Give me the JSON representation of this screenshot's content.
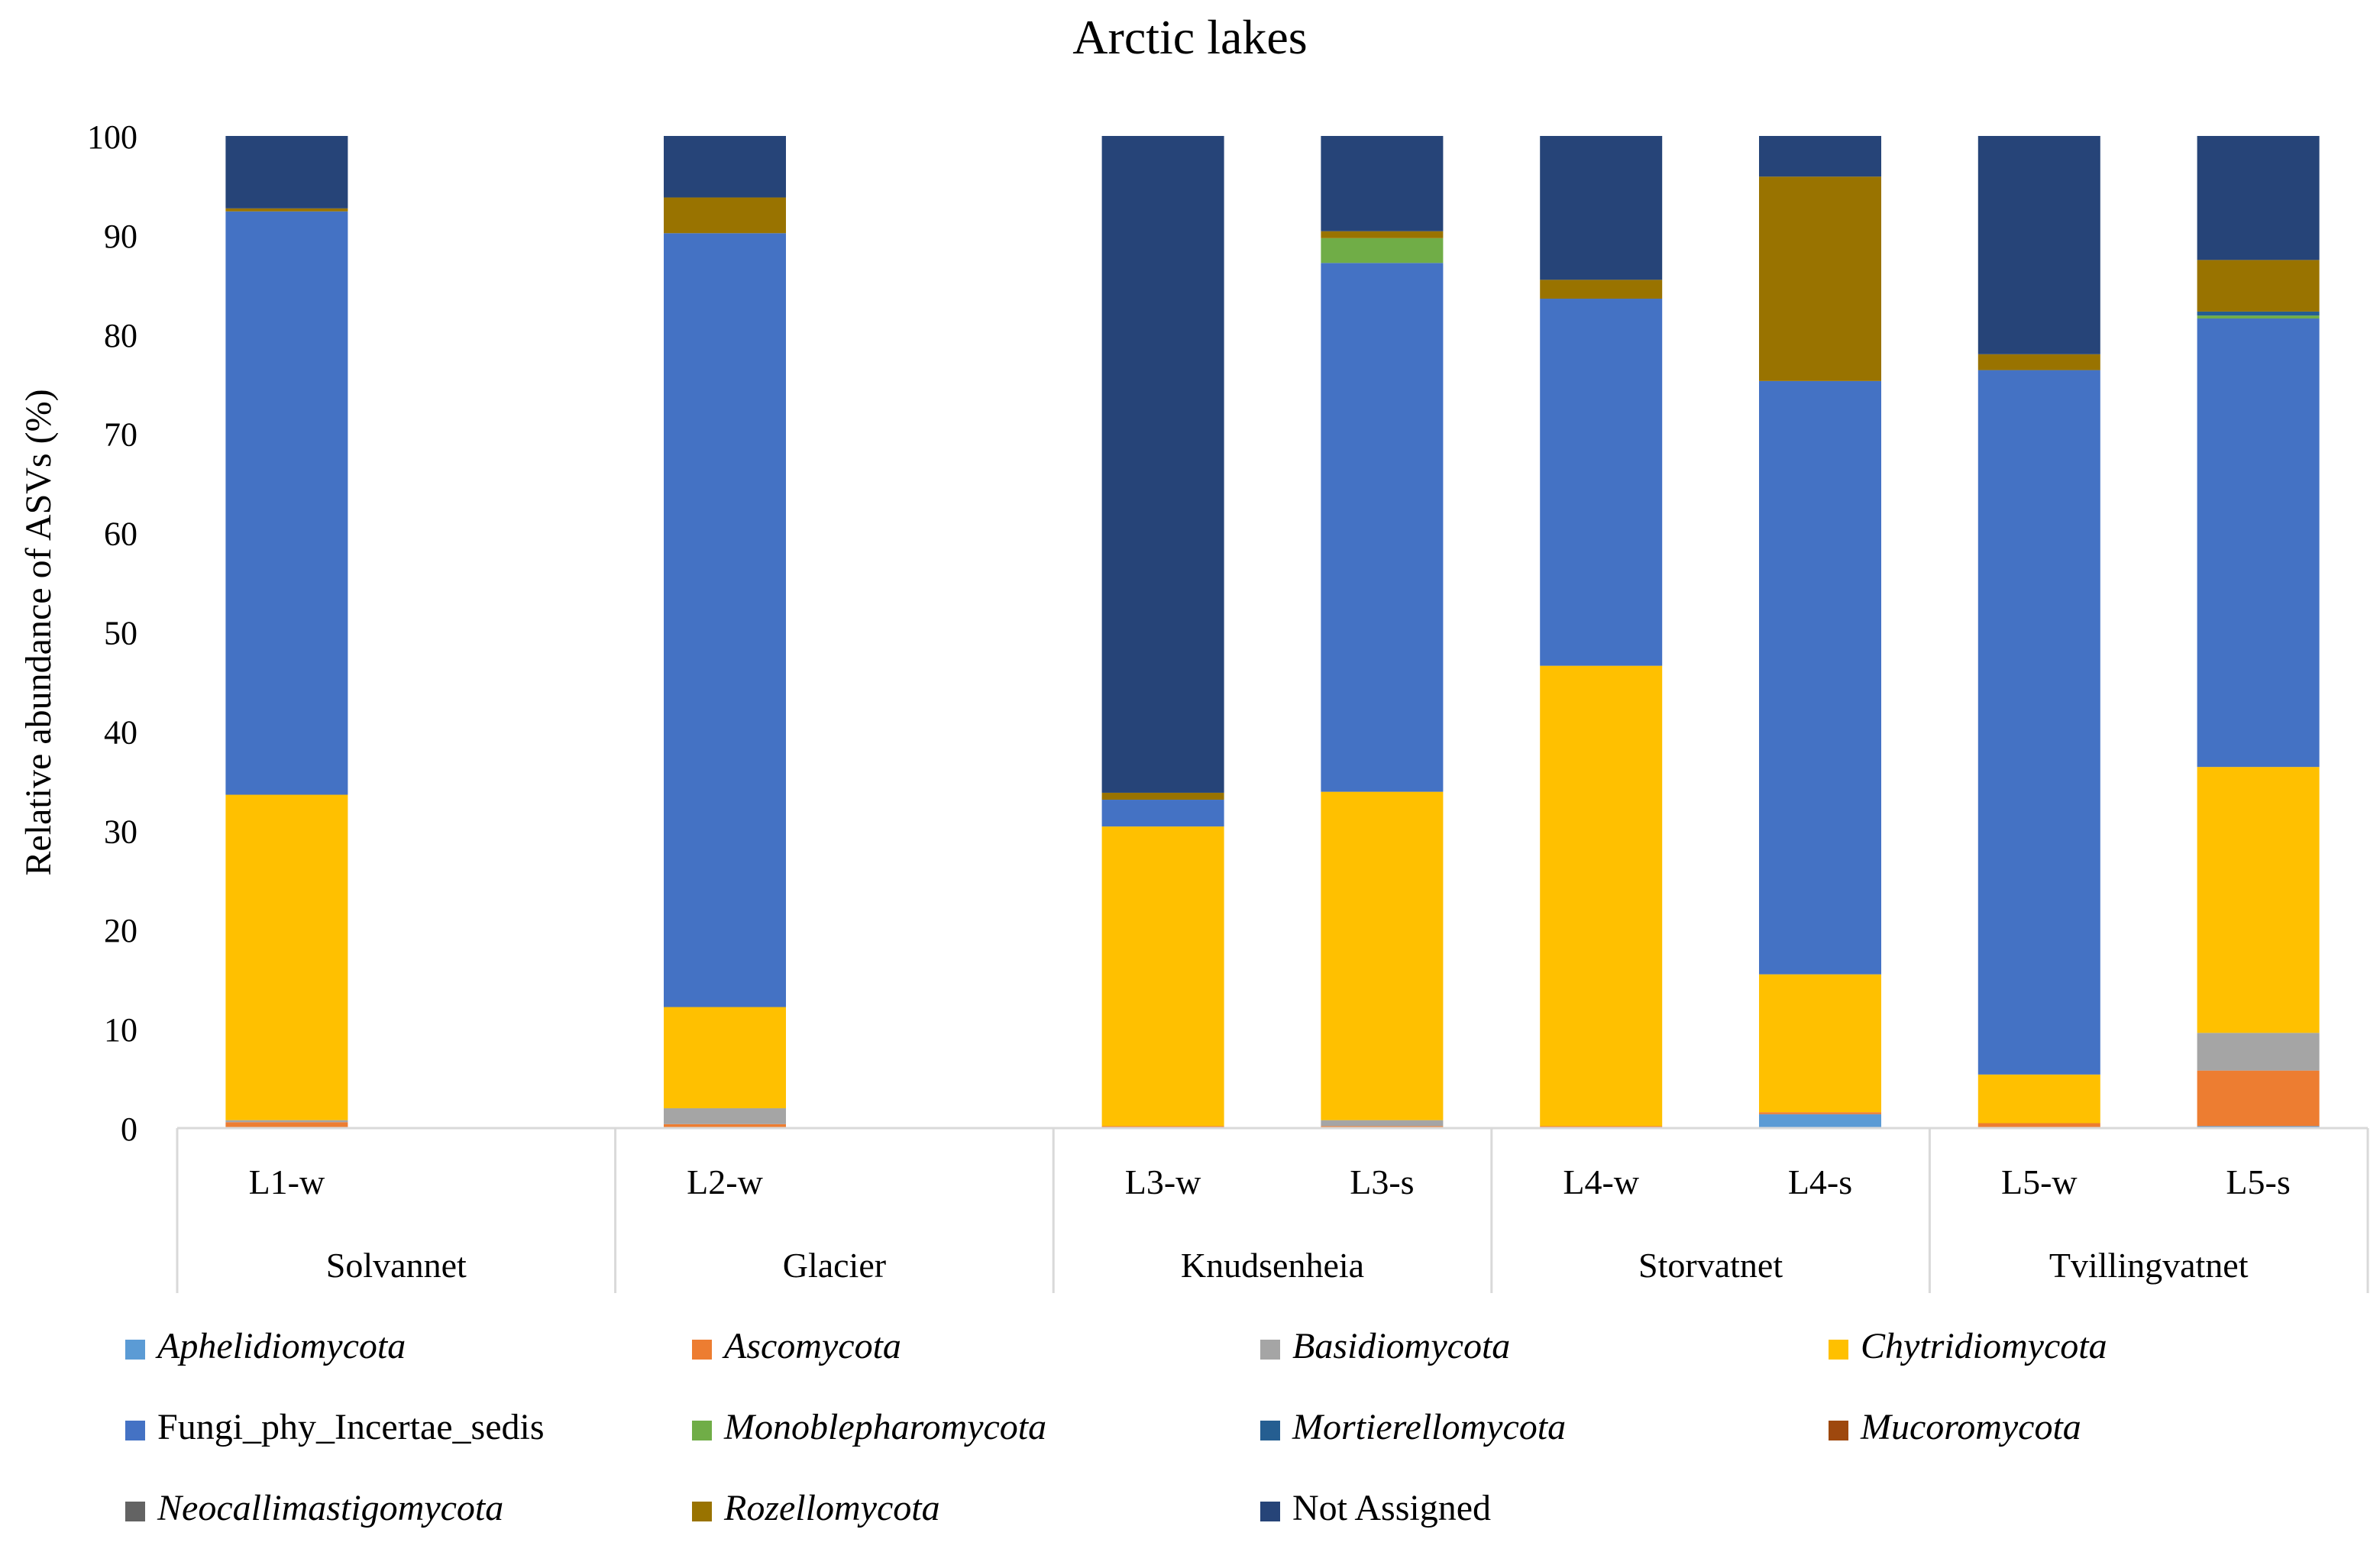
{
  "chart_data": {
    "type": "bar",
    "stacked": true,
    "title": "Arctic lakes",
    "xlabel": "",
    "ylabel": "Relative abundance of ASVs (%)",
    "ylim": [
      0,
      100
    ],
    "yticks": [
      0,
      10,
      20,
      30,
      40,
      50,
      60,
      70,
      80,
      90,
      100
    ],
    "grid": false,
    "legend_position": "bottom",
    "groups": [
      {
        "name": "Solvannet",
        "samples": [
          "L1-w"
        ]
      },
      {
        "name": "Glacier",
        "samples": [
          "L2-w"
        ]
      },
      {
        "name": "Knudsenheia",
        "samples": [
          "L3-w",
          "L3-s"
        ]
      },
      {
        "name": "Storvatnet",
        "samples": [
          "L4-w",
          "L4-s"
        ]
      },
      {
        "name": "Tvillingvatnet",
        "samples": [
          "L5-w",
          "L5-s"
        ]
      }
    ],
    "categories": [
      "L1-w",
      "L2-w",
      "L3-w",
      "L3-s",
      "L4-w",
      "L4-s",
      "L5-w",
      "L5-s"
    ],
    "series": [
      {
        "name": "Aphelidiomycota",
        "italic": true,
        "color": "#5B9BD5",
        "values": [
          0,
          0,
          0,
          0,
          0,
          1.4,
          0,
          0.2
        ]
      },
      {
        "name": "Ascomycota",
        "italic": true,
        "color": "#ED7D31",
        "values": [
          0.6,
          0.4,
          0.2,
          0.2,
          0.2,
          0.2,
          0.5,
          5.6
        ]
      },
      {
        "name": "Basidiomycota",
        "italic": true,
        "color": "#A5A5A5",
        "values": [
          0.2,
          1.6,
          0,
          0.6,
          0,
          0,
          0,
          3.8
        ]
      },
      {
        "name": "Chytridiomycota",
        "italic": true,
        "color": "#FFC000",
        "values": [
          32.8,
          10.2,
          30.2,
          33.1,
          46.4,
          13.9,
          4.9,
          26.8
        ]
      },
      {
        "name": "Fungi_phy_Incertae_sedis",
        "italic": false,
        "color": "#4472C4",
        "values": [
          58.8,
          78.0,
          2.7,
          53.3,
          37.0,
          59.8,
          71.0,
          45.2
        ]
      },
      {
        "name": "Monoblepharomycota",
        "italic": true,
        "color": "#70AD47",
        "values": [
          0,
          0,
          0,
          2.5,
          0,
          0,
          0,
          0.3
        ]
      },
      {
        "name": "Mortierellomycota",
        "italic": true,
        "color": "#255E91",
        "values": [
          0,
          0,
          0,
          0,
          0,
          0,
          0,
          0.4
        ]
      },
      {
        "name": "Mucoromycota",
        "italic": true,
        "color": "#9E480E",
        "values": [
          0,
          0,
          0,
          0,
          0,
          0,
          0,
          0
        ]
      },
      {
        "name": "Neocallimastigomycota",
        "italic": true,
        "color": "#636363",
        "values": [
          0,
          0,
          0,
          0,
          0,
          0,
          0,
          0
        ]
      },
      {
        "name": "Rozellomycota",
        "italic": true,
        "color": "#997300",
        "values": [
          0.3,
          3.6,
          0.7,
          0.7,
          1.9,
          20.6,
          1.6,
          5.2
        ]
      },
      {
        "name": "Not Assigned",
        "italic": false,
        "color": "#264478",
        "values": [
          7.3,
          6.2,
          66.2,
          9.6,
          14.5,
          4.1,
          22.0,
          12.5
        ]
      }
    ]
  }
}
